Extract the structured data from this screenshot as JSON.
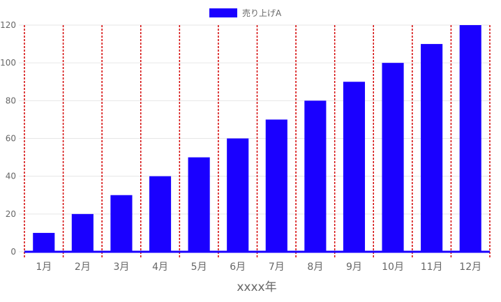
{
  "chart_data": {
    "type": "bar",
    "categories": [
      "1月",
      "2月",
      "3月",
      "4月",
      "5月",
      "6月",
      "7月",
      "8月",
      "9月",
      "10月",
      "11月",
      "12月"
    ],
    "series": [
      {
        "name": "売り上げA",
        "values": [
          10,
          20,
          30,
          40,
          50,
          60,
          70,
          80,
          90,
          100,
          110,
          120
        ],
        "color": "#1a00ff"
      }
    ],
    "xlabel": "xxxx年",
    "ylabel": "",
    "ylim": [
      0,
      120
    ],
    "yticks": [
      0,
      20,
      40,
      60,
      80,
      100,
      120
    ],
    "grid": true,
    "legend": "top-center",
    "x_gridline_color": "#d40000",
    "y_gridline_color": "#e6e6e6",
    "x_axis_line_color": "#1a00ff"
  }
}
